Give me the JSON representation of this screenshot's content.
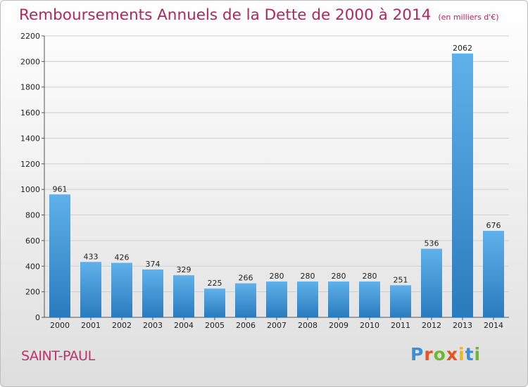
{
  "header": {
    "title": "Remboursements Annuels de la Dette de 2000 à 2014",
    "unit": "(en milliers d'€)"
  },
  "footer": {
    "place": "SAINT-PAUL",
    "logo": {
      "letters": [
        "P",
        "r",
        "o",
        "x",
        "i",
        "t",
        "i"
      ],
      "colors": [
        "#3a8fd6",
        "#e8521f",
        "#6cb82e",
        "#e8521f",
        "#f0b618",
        "#3a8fd6",
        "#6cb82e"
      ]
    }
  },
  "colors": {
    "bar_light": "#5fb1ea",
    "bar_dark": "#2a7bbd",
    "accent": "#b0275c"
  },
  "chart_data": {
    "type": "bar",
    "categories": [
      "2000",
      "2001",
      "2002",
      "2003",
      "2004",
      "2005",
      "2006",
      "2007",
      "2008",
      "2009",
      "2010",
      "2011",
      "2012",
      "2013",
      "2014"
    ],
    "values": [
      961,
      433,
      426,
      374,
      329,
      225,
      266,
      280,
      280,
      280,
      280,
      251,
      536,
      2062,
      676
    ],
    "ylim": [
      0,
      2200
    ],
    "yticks": [
      0,
      200,
      400,
      600,
      800,
      1000,
      1200,
      1400,
      1600,
      1800,
      2000,
      2200
    ],
    "grid": true,
    "data_labels": true
  }
}
